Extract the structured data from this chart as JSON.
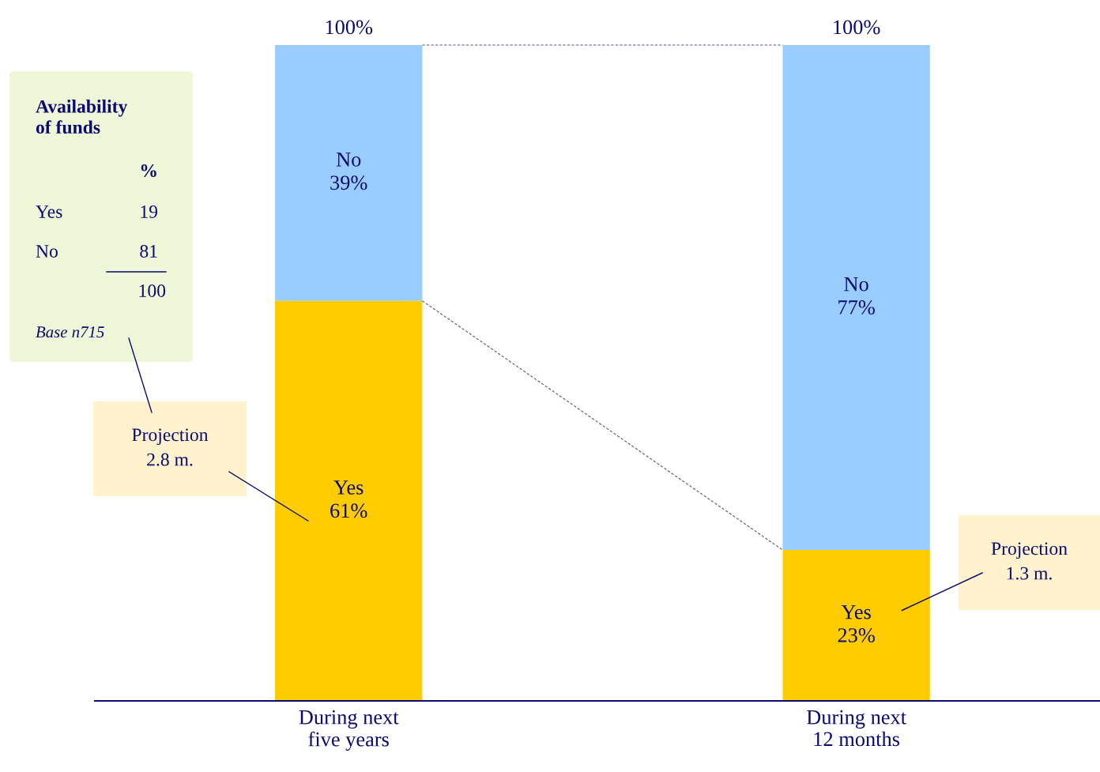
{
  "chart_data": {
    "type": "bar",
    "stacked": true,
    "categories": [
      "During next\nfive years",
      "During next\n12 months"
    ],
    "series": [
      {
        "name": "Yes",
        "color": "#ffcc00",
        "values": [
          61,
          23
        ],
        "value_labels": [
          "61%",
          "23%"
        ]
      },
      {
        "name": "No",
        "color": "#99ccff",
        "values": [
          39,
          77
        ],
        "value_labels": [
          "39%",
          "77%"
        ]
      }
    ],
    "totals": [
      "100%",
      "100%"
    ],
    "annotations": [
      "Availability\nof funds",
      "%",
      "Yes",
      "19",
      "No",
      "81",
      "100",
      "Base n715",
      "Projection\n2.8 m.",
      "Projection\n1.3 m."
    ]
  }
}
